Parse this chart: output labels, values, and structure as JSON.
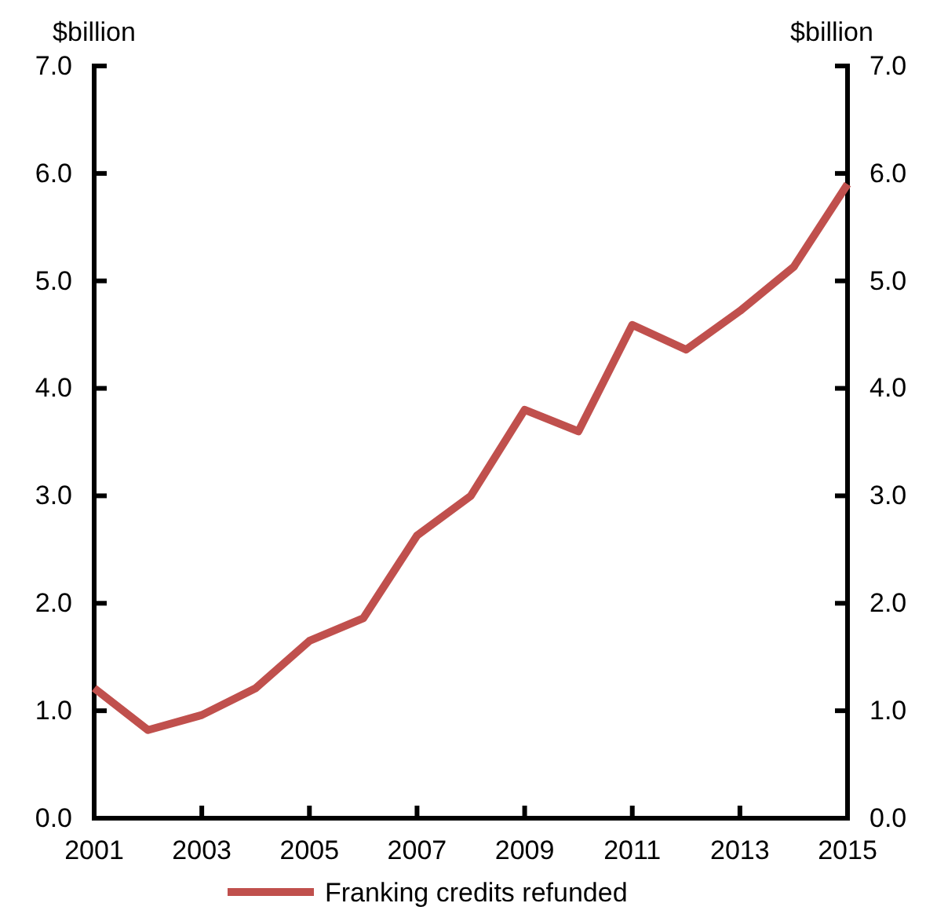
{
  "chart_data": {
    "type": "line",
    "ylabel": "$billion",
    "y2label": "$billion",
    "x": [
      2001,
      2002,
      2003,
      2004,
      2005,
      2006,
      2007,
      2008,
      2009,
      2010,
      2011,
      2012,
      2013,
      2014,
      2015
    ],
    "series": [
      {
        "name": "Franking credits refunded",
        "color": "#c0504d",
        "values": [
          1.21,
          0.82,
          0.96,
          1.21,
          1.65,
          1.86,
          2.63,
          3.0,
          3.8,
          3.6,
          4.59,
          4.36,
          4.72,
          5.13,
          5.9
        ]
      }
    ],
    "xlim": [
      2001,
      2015
    ],
    "xticks": [
      2001,
      2003,
      2005,
      2007,
      2009,
      2011,
      2013,
      2015
    ],
    "ylim": [
      0,
      7
    ],
    "yticks": [
      {
        "value": 0,
        "label": "0.0"
      },
      {
        "value": 1,
        "label": "1.0"
      },
      {
        "value": 2,
        "label": "2.0"
      },
      {
        "value": 3,
        "label": "3.0"
      },
      {
        "value": 4,
        "label": "4.0"
      },
      {
        "value": 5,
        "label": "5.0"
      },
      {
        "value": 6,
        "label": "6.0"
      },
      {
        "value": 7,
        "label": "7.0"
      }
    ],
    "y2lim": [
      0,
      7
    ],
    "y2ticks": [
      {
        "value": 0,
        "label": "0.0"
      },
      {
        "value": 1,
        "label": "1.0"
      },
      {
        "value": 2,
        "label": "2.0"
      },
      {
        "value": 3,
        "label": "3.0"
      },
      {
        "value": 4,
        "label": "4.0"
      },
      {
        "value": 5,
        "label": "5.0"
      },
      {
        "value": 6,
        "label": "6.0"
      },
      {
        "value": 7,
        "label": "7.0"
      }
    ],
    "legend": "bottom",
    "grid": false,
    "marker": "none",
    "line_style": "solid"
  }
}
